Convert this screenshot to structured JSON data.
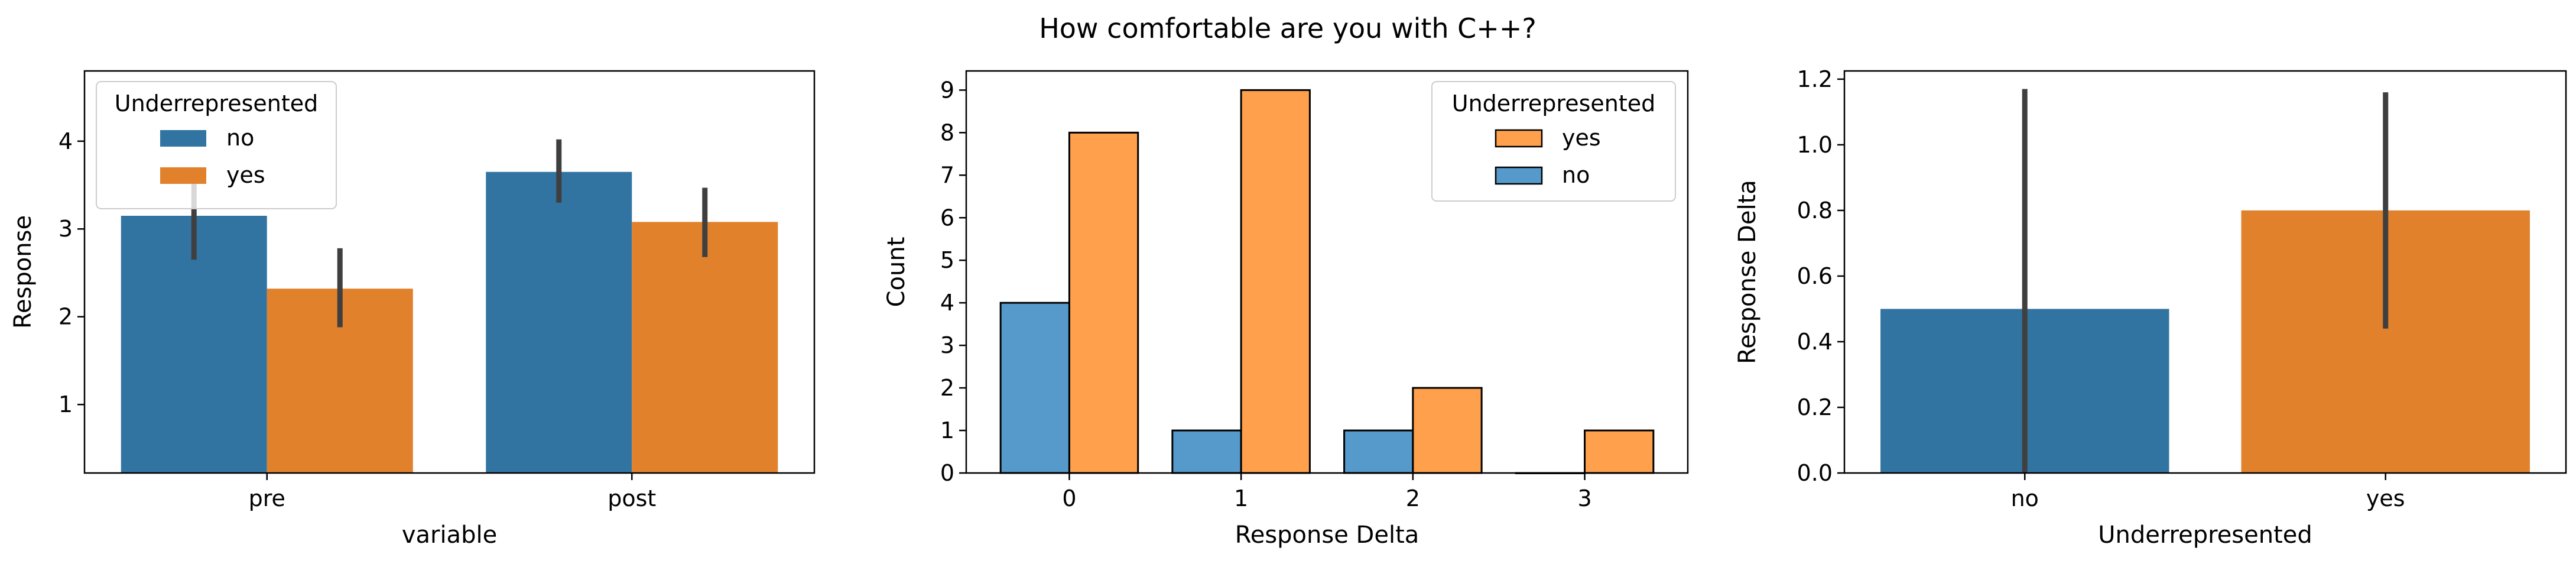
{
  "figure": {
    "title": "How comfortable are you with C++?"
  },
  "colors": {
    "no_solid": "#3274a1",
    "yes_solid": "#e1812c",
    "no_hist": "#5699cb",
    "yes_hist": "#ffa04c",
    "errorbar": "#3f3f3f"
  },
  "chart_data": [
    {
      "type": "bar",
      "title": "",
      "xlabel": "variable",
      "ylabel": "Response",
      "categories": [
        "pre",
        "post"
      ],
      "ylim": [
        0.22,
        4.8
      ],
      "yticks": [
        1,
        2,
        3,
        4
      ],
      "legend": {
        "title": "Underrepresented",
        "placement": "top-left",
        "entries": [
          "no",
          "yes"
        ]
      },
      "series": [
        {
          "name": "no",
          "values": [
            3.15,
            3.65
          ],
          "ci": [
            [
              2.65,
              3.7
            ],
            [
              3.3,
              4.02
            ]
          ]
        },
        {
          "name": "yes",
          "values": [
            2.32,
            3.08
          ],
          "ci": [
            [
              1.88,
              2.78
            ],
            [
              2.68,
              3.47
            ]
          ]
        }
      ]
    },
    {
      "type": "bar",
      "title": "",
      "xlabel": "Response Delta",
      "ylabel": "Count",
      "categories": [
        "0",
        "1",
        "2",
        "3"
      ],
      "ylim": [
        0,
        9.45
      ],
      "yticks": [
        0,
        1,
        2,
        3,
        4,
        5,
        6,
        7,
        8,
        9
      ],
      "legend": {
        "title": "Underrepresented",
        "placement": "top-right",
        "entries": [
          "yes",
          "no"
        ]
      },
      "series": [
        {
          "name": "no",
          "values": [
            4,
            1,
            1,
            0
          ]
        },
        {
          "name": "yes",
          "values": [
            8,
            9,
            2,
            1
          ]
        }
      ]
    },
    {
      "type": "bar",
      "title": "",
      "xlabel": "Underrepresented",
      "ylabel": "Response Delta",
      "categories": [
        "no",
        "yes"
      ],
      "ylim": [
        0,
        1.225
      ],
      "yticks": [
        "0.0",
        "0.2",
        "0.4",
        "0.6",
        "0.8",
        "1.0",
        "1.2"
      ],
      "values": [
        0.5,
        0.8
      ],
      "ci": [
        [
          0.0,
          1.17
        ],
        [
          0.44,
          1.16
        ]
      ]
    }
  ]
}
